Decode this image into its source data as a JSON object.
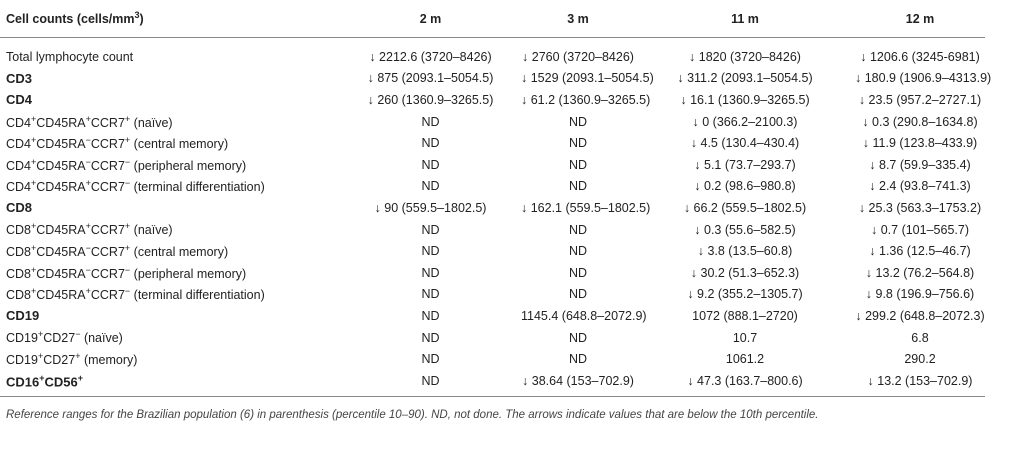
{
  "table": {
    "header": [
      [
        "Cell counts (cells/mm",
        {
          "sup": "3"
        },
        ")"
      ],
      "2 m",
      "3 m",
      "11 m",
      "12 m"
    ],
    "rows": [
      {
        "label": [
          "Total lymphocyte count"
        ],
        "bold": false,
        "cells": [
          "↓ 2212.6 (3720–8426)",
          "↓ 2760 (3720–8426)",
          "↓ 1820 (3720–8426)",
          "↓ 1206.6 (3245-6981)"
        ]
      },
      {
        "label": [
          "CD3"
        ],
        "bold": true,
        "cells": [
          "↓ 875 (2093.1–5054.5)",
          "↓ 1529 (2093.1–5054.5)",
          "↓ 311.2 (2093.1–5054.5)",
          "↓ 180.9 (1906.9–4313.9)"
        ]
      },
      {
        "label": [
          "CD4"
        ],
        "bold": true,
        "cells": [
          "↓ 260 (1360.9–3265.5)",
          "↓ 61.2 (1360.9–3265.5)",
          "↓ 16.1 (1360.9–3265.5)",
          "↓ 23.5 (957.2–2727.1)"
        ]
      },
      {
        "label": [
          "CD4",
          {
            "sup": "+"
          },
          "CD45RA",
          {
            "sup": "+"
          },
          "CCR7",
          {
            "sup": "+"
          },
          " (naïve)"
        ],
        "bold": false,
        "cells": [
          "ND",
          "ND",
          "↓ 0 (366.2–2100.3)",
          "↓ 0.3 (290.8–1634.8)"
        ]
      },
      {
        "label": [
          "CD4",
          {
            "sup": "+"
          },
          "CD45RA",
          {
            "sup": "−"
          },
          "CCR7",
          {
            "sup": "+"
          },
          " (central memory)"
        ],
        "bold": false,
        "cells": [
          "ND",
          "ND",
          "↓ 4.5 (130.4–430.4)",
          "↓ 11.9 (123.8–433.9)"
        ]
      },
      {
        "label": [
          "CD4",
          {
            "sup": "+"
          },
          "CD45RA",
          {
            "sup": "−"
          },
          "CCR7",
          {
            "sup": "−"
          },
          " (peripheral memory)"
        ],
        "bold": false,
        "cells": [
          "ND",
          "ND",
          "↓ 5.1 (73.7–293.7)",
          "↓ 8.7 (59.9–335.4)"
        ]
      },
      {
        "label": [
          "CD4",
          {
            "sup": "+"
          },
          "CD45RA",
          {
            "sup": "+"
          },
          "CCR7",
          {
            "sup": "−"
          },
          " (terminal differentiation)"
        ],
        "bold": false,
        "cells": [
          "ND",
          "ND",
          "↓ 0.2 (98.6–980.8)",
          "↓ 2.4 (93.8–741.3)"
        ]
      },
      {
        "label": [
          "CD8"
        ],
        "bold": true,
        "cells": [
          "↓ 90 (559.5–1802.5)",
          "↓ 162.1 (559.5–1802.5)",
          "↓ 66.2 (559.5–1802.5)",
          "↓ 25.3 (563.3–1753.2)"
        ]
      },
      {
        "label": [
          "CD8",
          {
            "sup": "+"
          },
          "CD45RA",
          {
            "sup": "+"
          },
          "CCR7",
          {
            "sup": "+"
          },
          " (naïve)"
        ],
        "bold": false,
        "cells": [
          "ND",
          "ND",
          "↓ 0.3 (55.6–582.5)",
          "↓ 0.7 (101–565.7)"
        ]
      },
      {
        "label": [
          "CD8",
          {
            "sup": "+"
          },
          "CD45RA",
          {
            "sup": "−"
          },
          "CCR7",
          {
            "sup": "+"
          },
          " (central memory)"
        ],
        "bold": false,
        "cells": [
          "ND",
          "ND",
          "↓ 3.8 (13.5–60.8)",
          "↓ 1.36 (12.5–46.7)"
        ]
      },
      {
        "label": [
          "CD8",
          {
            "sup": "+"
          },
          "CD45RA",
          {
            "sup": "−"
          },
          "CCR7",
          {
            "sup": "−"
          },
          " (peripheral memory)"
        ],
        "bold": false,
        "cells": [
          "ND",
          "ND",
          "↓ 30.2 (51.3–652.3)",
          "↓ 13.2 (76.2–564.8)"
        ]
      },
      {
        "label": [
          "CD8",
          {
            "sup": "+"
          },
          "CD45RA",
          {
            "sup": "+"
          },
          "CCR7",
          {
            "sup": "−"
          },
          " (terminal differentiation)"
        ],
        "bold": false,
        "cells": [
          "ND",
          "ND",
          "↓ 9.2 (355.2–1305.7)",
          "↓ 9.8 (196.9–756.6)"
        ]
      },
      {
        "label": [
          "CD19"
        ],
        "bold": true,
        "cells": [
          "ND",
          "1145.4 (648.8–2072.9)",
          "1072 (888.1–2720)",
          "↓ 299.2 (648.8–2072.3)"
        ]
      },
      {
        "label": [
          "CD19",
          {
            "sup": "+"
          },
          "CD27",
          {
            "sup": "−"
          },
          " (naïve)"
        ],
        "bold": false,
        "cells": [
          "ND",
          "ND",
          "10.7",
          "6.8"
        ]
      },
      {
        "label": [
          "CD19",
          {
            "sup": "+"
          },
          "CD27",
          {
            "sup": "+"
          },
          " (memory)"
        ],
        "bold": false,
        "cells": [
          "ND",
          "ND",
          "1061.2",
          "290.2"
        ]
      },
      {
        "label": [
          "CD16",
          {
            "sup": "+"
          },
          "CD56",
          {
            "sup": "+"
          }
        ],
        "bold": true,
        "cells": [
          "ND",
          "↓ 38.64 (153–702.9)",
          "↓ 47.3 (163.7–800.6)",
          "↓ 13.2 (153–702.9)"
        ]
      }
    ]
  },
  "footnote": "Reference ranges for the Brazilian population (6) in parenthesis (percentile 10–90). ND, not done. The arrows indicate values that are below the 10th percentile."
}
